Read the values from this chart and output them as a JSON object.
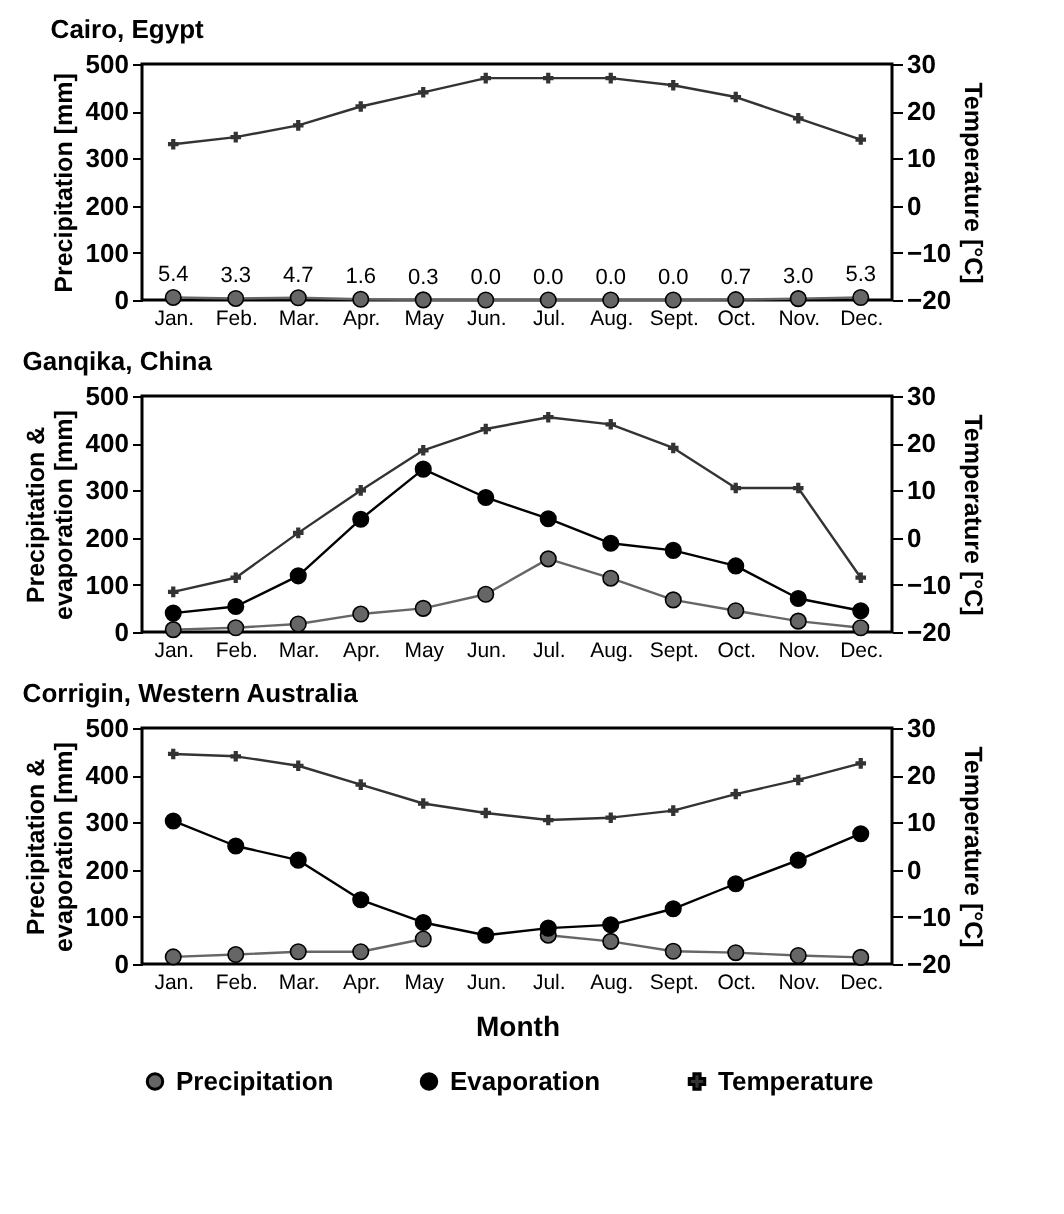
{
  "chart_data": [
    {
      "type": "line",
      "title": "Cairo, Egypt",
      "ylabel": "Precipitation [mm]",
      "y2label": "Temperature [°C]",
      "categories": [
        "Jan.",
        "Feb.",
        "Mar.",
        "Apr.",
        "May",
        "Jun.",
        "Jul.",
        "Aug.",
        "Sept.",
        "Oct.",
        "Nov.",
        "Dec."
      ],
      "ylim": [
        0,
        500
      ],
      "yticks": [
        0,
        100,
        200,
        300,
        400,
        500
      ],
      "y2lim": [
        -20,
        30
      ],
      "y2ticks": [
        -20,
        -10,
        0,
        10,
        20,
        30
      ],
      "series": [
        {
          "color": "#666666",
          "marker": "circle",
          "values": [
            5.4,
            3.3,
            4.7,
            1.6,
            0.3,
            0.0,
            0.0,
            0.0,
            0.0,
            0.7,
            3.0,
            5.3
          ],
          "value_labels": [
            "5.4",
            "3.3",
            "4.7",
            "1.6",
            "0.3",
            "0.0",
            "0.0",
            "0.0",
            "0.0",
            "0.7",
            "3.0",
            "5.3"
          ]
        },
        {
          "color": "#333333",
          "marker": "cross",
          "axis": "y2",
          "values": [
            13,
            14.5,
            17,
            21,
            24,
            27,
            27,
            27,
            25.5,
            23,
            18.5,
            14
          ]
        }
      ]
    },
    {
      "type": "line",
      "title": "Ganqika, China",
      "ylabel": "Precipitation & evaporation [mm]",
      "y2label": "Temperature [°C]",
      "categories": [
        "Jan.",
        "Feb.",
        "Mar.",
        "Apr.",
        "May",
        "Jun.",
        "Jul.",
        "Aug.",
        "Sept.",
        "Oct.",
        "Nov.",
        "Dec."
      ],
      "ylim": [
        0,
        500
      ],
      "yticks": [
        0,
        100,
        200,
        300,
        400,
        500
      ],
      "y2lim": [
        -20,
        30
      ],
      "y2ticks": [
        -20,
        -10,
        0,
        10,
        20,
        30
      ],
      "series": [
        {
          "color": "#666666",
          "marker": "circle",
          "values": [
            5,
            9,
            17,
            38,
            50,
            80,
            155,
            114,
            68,
            45,
            23,
            9
          ]
        },
        {
          "color": "#000000",
          "marker": "circle",
          "values": [
            40,
            54,
            119,
            239,
            345,
            285,
            240,
            188,
            173,
            140,
            71,
            45
          ]
        },
        {
          "color": "#333333",
          "marker": "cross",
          "axis": "y2",
          "values": [
            -11.5,
            -8.5,
            1,
            10,
            18.5,
            23,
            25.5,
            24,
            19,
            10.5,
            10.5,
            -8.5
          ]
        }
      ]
    },
    {
      "type": "line",
      "title": "Corrigin, Western Australia",
      "xlabel": "Month",
      "ylabel": "Precipitation & evaporation [mm]",
      "y2label": "Temperature [°C]",
      "categories": [
        "Jan.",
        "Feb.",
        "Mar.",
        "Apr.",
        "May",
        "Jun.",
        "Jul.",
        "Aug.",
        "Sept.",
        "Oct.",
        "Nov.",
        "Dec."
      ],
      "ylim": [
        0,
        500
      ],
      "yticks": [
        0,
        100,
        200,
        300,
        400,
        500
      ],
      "y2lim": [
        -20,
        30
      ],
      "y2ticks": [
        -20,
        -10,
        0,
        10,
        20,
        30
      ],
      "legend": "bottom",
      "series": [
        {
          "name": "Precipitation",
          "color": "#666666",
          "marker": "circle",
          "values": [
            15,
            20,
            26,
            26,
            53,
            null,
            61,
            48,
            27,
            24,
            18,
            14
          ]
        },
        {
          "name": "Evaporation",
          "color": "#000000",
          "marker": "circle",
          "values": [
            303,
            250,
            220,
            136,
            88,
            61,
            76,
            83,
            117,
            170,
            220,
            276
          ]
        },
        {
          "name": "Temperature",
          "color": "#333333",
          "marker": "cross",
          "axis": "y2",
          "values": [
            24.5,
            24,
            22,
            18,
            14,
            12,
            10.5,
            11,
            12.5,
            16,
            19,
            22.5
          ]
        }
      ]
    }
  ]
}
